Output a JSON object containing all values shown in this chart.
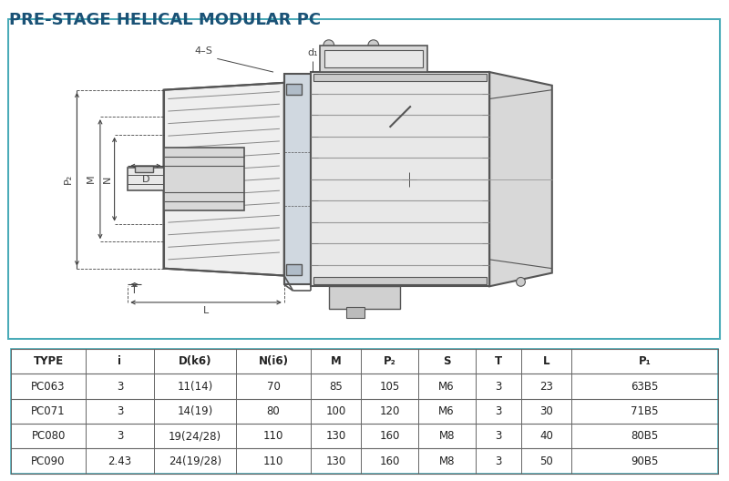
{
  "title": "PRE-STAGE HELICAL MODULAR PC",
  "title_color": "#1a5276",
  "title_fontsize": 13,
  "bg_color": "#ffffff",
  "diagram_bg": "#ffffff",
  "border_color": "#4aabb8",
  "lc": "#555555",
  "dc": "#666666",
  "ann_color": "#444444",
  "table_headers": [
    "TYPE",
    "i",
    "D(k6)",
    "N(i6)",
    "M",
    "P₂",
    "S",
    "T",
    "L",
    "P₁"
  ],
  "table_rows": [
    [
      "PC063",
      "3",
      "11(14)",
      "70",
      "85",
      "105",
      "M6",
      "3",
      "23",
      "63B5"
    ],
    [
      "PC071",
      "3",
      "14(19)",
      "80",
      "100",
      "120",
      "M6",
      "3",
      "30",
      "71B5"
    ],
    [
      "PC080",
      "3",
      "19(24/28)",
      "110",
      "130",
      "160",
      "M8",
      "3",
      "40",
      "80B5"
    ],
    [
      "PC090",
      "2.43",
      "24(19/28)",
      "110",
      "130",
      "160",
      "M8",
      "3",
      "50",
      "90B5"
    ]
  ]
}
